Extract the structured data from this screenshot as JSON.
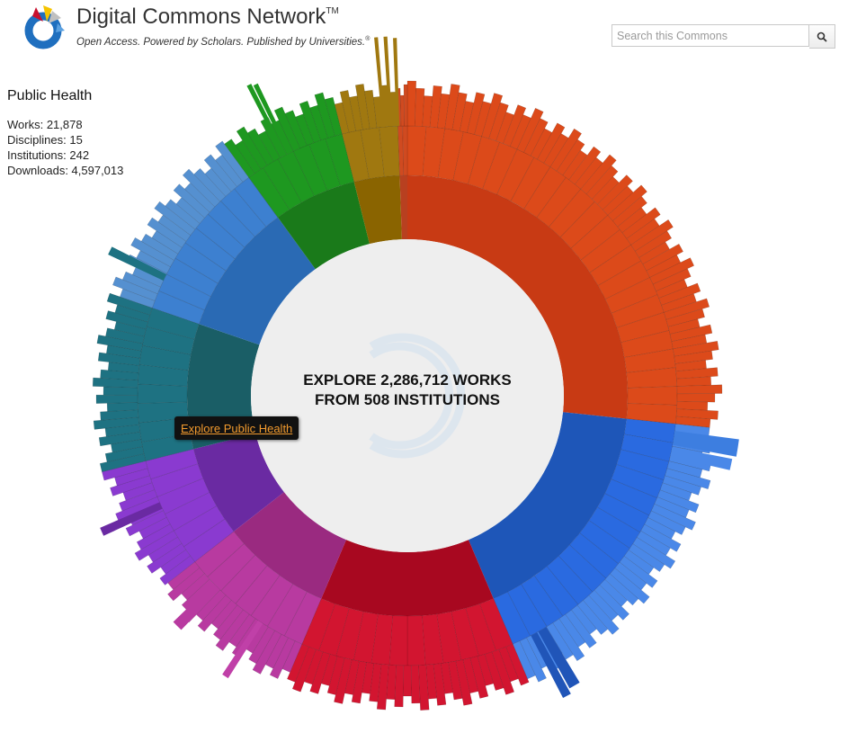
{
  "header": {
    "title": "Digital Commons Network",
    "title_mark": "TM",
    "tagline": "Open Access. Powered by Scholars. Published by Universities.",
    "tagline_mark": "®"
  },
  "search": {
    "placeholder": "Search this Commons",
    "button_icon": "magnifier-icon"
  },
  "selection": {
    "title": "Public Health",
    "stats": [
      {
        "label": "Works",
        "value": "21,878"
      },
      {
        "label": "Disciplines",
        "value": "15"
      },
      {
        "label": "Institutions",
        "value": "242"
      },
      {
        "label": "Downloads",
        "value": "4,597,013"
      }
    ],
    "stat_lines": [
      "Works: 21,878",
      "Disciplines: 15",
      "Institutions: 242",
      "Downloads: 4,597,013"
    ]
  },
  "center": {
    "line1": "EXPLORE 2,286,712 WORKS",
    "line2": "FROM 508 INSTITUTIONS"
  },
  "tooltip": {
    "label": "Explore Public Health"
  },
  "chart_data": {
    "type": "sunburst",
    "units": "degrees clockwise from top",
    "segments": [
      {
        "start": 0,
        "end": 96,
        "color": "#c83a14",
        "outer": "#dc4a1a"
      },
      {
        "start": 96,
        "end": 157,
        "color": "#1e56b8",
        "outer": "#2a6ae0",
        "tip": "#4a88e8"
      },
      {
        "start": 157,
        "end": 203,
        "color": "#a80820",
        "outer": "#d21530"
      },
      {
        "start": 203,
        "end": 232,
        "color": "#9a2a80",
        "outer": "#b83aa0"
      },
      {
        "start": 232,
        "end": 256,
        "color": "#6a2aa2",
        "outer": "#8a3ad0"
      },
      {
        "start": 256,
        "end": 289,
        "color": "#1a5e66",
        "outer": "#1e7282"
      },
      {
        "start": 289,
        "end": 324,
        "color": "#2a6ab4",
        "outer": "#3d80d0",
        "tip": "#5590d0"
      },
      {
        "start": 324,
        "end": 346,
        "color": "#1a7a1a",
        "outer": "#1e9820"
      },
      {
        "start": 346,
        "end": 358,
        "color": "#8a6400",
        "outer": "#a07810"
      },
      {
        "start": 358,
        "end": 360,
        "color": "#b84020",
        "outer": "#d04a20"
      }
    ]
  },
  "colors": {
    "center_fill": "#eeeeee",
    "tooltip_text": "#f29a2e"
  }
}
